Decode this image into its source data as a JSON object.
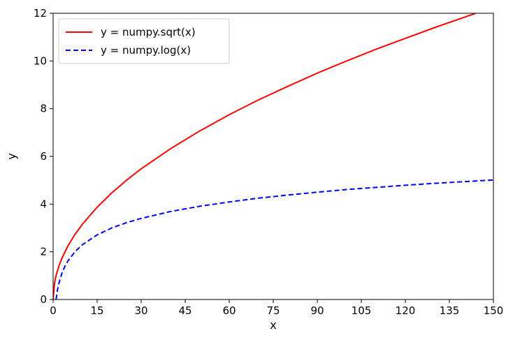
{
  "chart_data": {
    "type": "line",
    "title": "",
    "xlabel": "x",
    "ylabel": "y",
    "xlim": [
      0,
      150
    ],
    "ylim": [
      0,
      12
    ],
    "xticks": [
      0,
      15,
      30,
      45,
      60,
      75,
      90,
      105,
      120,
      135,
      150
    ],
    "yticks": [
      0,
      2,
      4,
      6,
      8,
      10,
      12
    ],
    "grid": false,
    "legend_position": "upper-left",
    "series": [
      {
        "name": "y = numpy.sqrt(x)",
        "color": "#ff0000",
        "style": "solid",
        "x": [
          0,
          0.5,
          1,
          2,
          3,
          5,
          7.5,
          10,
          15,
          20,
          25,
          30,
          40,
          50,
          60,
          70,
          80,
          90,
          100,
          110,
          120,
          130,
          140,
          144
        ],
        "y": [
          0,
          0.71,
          1.0,
          1.41,
          1.73,
          2.24,
          2.74,
          3.16,
          3.87,
          4.47,
          5.0,
          5.48,
          6.32,
          7.07,
          7.75,
          8.37,
          8.94,
          9.49,
          10.0,
          10.49,
          10.95,
          11.4,
          11.83,
          12.0
        ]
      },
      {
        "name": "y = numpy.log(x)",
        "color": "#0000ff",
        "style": "dashed",
        "x": [
          1,
          1.5,
          2,
          3,
          4,
          5,
          7.5,
          10,
          15,
          20,
          25,
          30,
          40,
          50,
          60,
          70,
          80,
          90,
          100,
          110,
          120,
          130,
          140,
          150
        ],
        "y": [
          0,
          0.41,
          0.69,
          1.1,
          1.39,
          1.61,
          2.01,
          2.3,
          2.71,
          3.0,
          3.22,
          3.4,
          3.69,
          3.91,
          4.09,
          4.25,
          4.38,
          4.5,
          4.61,
          4.7,
          4.79,
          4.87,
          4.94,
          5.01
        ]
      }
    ]
  }
}
